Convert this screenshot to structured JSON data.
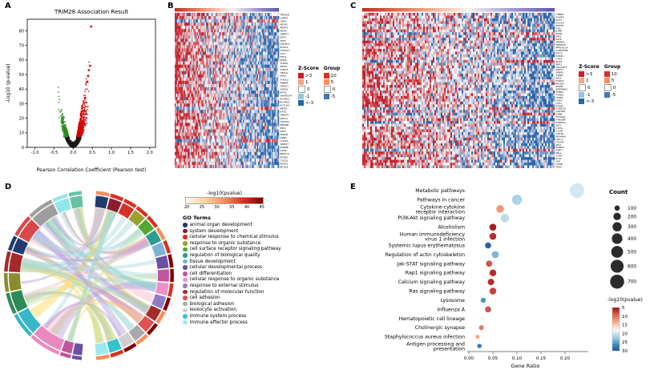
{
  "figure": {
    "panel_labels": {
      "a": "A",
      "b": "B",
      "c": "C",
      "d": "D",
      "e": "E"
    }
  },
  "chart_data": [
    {
      "id": "volcano",
      "type": "scatter",
      "title": "TRIM28 Association Result",
      "xlabel": "Pearson Correlation Coefficient (Pearson test)",
      "ylabel": "-Log10 (p-value)",
      "xlim": [
        -1.2,
        2.15
      ],
      "xticks": [
        -1.0,
        -0.5,
        0.0,
        0.5,
        1.0,
        1.5,
        2.0
      ],
      "ylim": [
        0,
        88
      ],
      "yticks": [
        0,
        10,
        20,
        30,
        40,
        50,
        60,
        70,
        80
      ],
      "colors": {
        "positive": "#d40000",
        "negative": "#2e8b22",
        "ns": "#1a1a1a"
      },
      "top_points": [
        {
          "x": 0.47,
          "y": 83
        },
        {
          "x": 0.44,
          "y": 56
        },
        {
          "x": 0.41,
          "y": 53
        },
        {
          "x": 0.39,
          "y": 49
        },
        {
          "x": 0.37,
          "y": 45
        }
      ]
    },
    {
      "id": "heatmap_b",
      "type": "heatmap",
      "rows": 48,
      "cols": 90,
      "seed": 11,
      "ann_stops": [
        [
          0,
          "#c42a20"
        ],
        [
          0.32,
          "#f0a080"
        ],
        [
          0.55,
          "#f5f2f0"
        ],
        [
          0.8,
          "#9a93cf"
        ],
        [
          1,
          "#5b55ae"
        ]
      ],
      "genes": [
        "TRIM28",
        "UHRF1",
        "CBX3",
        "MCM2",
        "PRMT1",
        "NASP",
        "DNMT1",
        "E2F4",
        "TAF5",
        "GTF3C5",
        "POLA1",
        "CHAF1A",
        "LIG1",
        "RFC4",
        "PCNA",
        "TOP2A",
        "EZH2",
        "SUZ12",
        "HELLS",
        "TTF2",
        "THOC2",
        "RBBP4",
        "HDAC1",
        "SAP30",
        "MTA2",
        "SMARCA4",
        "RUVBL1",
        "RUVBL2",
        "ACTL6A",
        "BRD8",
        "KAT5",
        "DMAP1",
        "VPS72",
        "YEATS4",
        "MRGBP",
        "EPC1",
        "ING3",
        "TRRAP",
        "DDB1",
        "CUL4A",
        "WDR77",
        "SNRPB",
        "LSM2",
        "PRPF19",
        "SF3B3",
        "CDC5L",
        "PLRG1",
        "BCAS2"
      ],
      "zscore_legend": {
        "title": "Z-Score",
        "items": [
          {
            "label": ">3",
            "color": "#ca2027"
          },
          {
            "label": "1",
            "color": "#f4a582"
          },
          {
            "label": "0",
            "color": "#ffffff"
          },
          {
            "label": "-1",
            "color": "#92c5de"
          },
          {
            "label": "<-3",
            "color": "#2166ac"
          }
        ]
      },
      "group_legend": {
        "title": "Group",
        "items": [
          {
            "label": "10",
            "color": "#d73027"
          },
          {
            "label": "5",
            "color": "#fc8d59"
          },
          {
            "label": "0",
            "color": "#ffffff"
          },
          {
            "label": "-5",
            "color": "#4575b4"
          }
        ]
      }
    },
    {
      "id": "heatmap_c",
      "type": "heatmap",
      "rows": 56,
      "cols": 120,
      "seed": 29,
      "ann_stops": [
        [
          0,
          "#c42a20"
        ],
        [
          0.32,
          "#f0a080"
        ],
        [
          0.55,
          "#f5f2f0"
        ],
        [
          0.8,
          "#9a93cf"
        ],
        [
          1,
          "#5b55ae"
        ]
      ],
      "genes": [
        "CPEB4",
        "DUSP5",
        "KLF4",
        "SOCS3",
        "ZFP36",
        "FOS",
        "JUNB",
        "EGR1",
        "IER2",
        "KLF6",
        "NFKBIA",
        "TNFAIP3",
        "PPP1R15A",
        "GADD45B",
        "BTG2",
        "CYR61",
        "CTGF",
        "SGK1",
        "PER1",
        "TSC22D3",
        "DDIT4",
        "FKBP5",
        "TXNIP",
        "IRS2",
        "FOXO3",
        "PIK3R1",
        "RHOB",
        "SERPINE1",
        "THBS1",
        "TGFB1",
        "ITGB2",
        "CD53",
        "LCP1",
        "PTPRC",
        "CORO1A",
        "LAPTM5",
        "CYBB",
        "FCGR2A",
        "TYROBP",
        "FCER1G",
        "AIF1",
        "C1QA",
        "C1QB",
        "CSF1R",
        "MS4A6A",
        "CD14",
        "ITGAM",
        "SPI1",
        "RUNX3",
        "IKZF1",
        "SELL",
        "CCR7",
        "IL7R",
        "LTB",
        "CD3E",
        "TRAC"
      ],
      "zscore_legend": {
        "title": "Z-Score",
        "items": [
          {
            "label": ">3",
            "color": "#ca2027"
          },
          {
            "label": "1",
            "color": "#f4a582"
          },
          {
            "label": "0",
            "color": "#ffffff"
          },
          {
            "label": "-1",
            "color": "#92c5de"
          },
          {
            "label": "<-3",
            "color": "#2166ac"
          }
        ]
      },
      "group_legend": {
        "title": "Group",
        "items": [
          {
            "label": "10",
            "color": "#d73027"
          },
          {
            "label": "5",
            "color": "#fc8d59"
          },
          {
            "label": "0",
            "color": "#ffffff"
          },
          {
            "label": "-5",
            "color": "#4575b4"
          }
        ]
      }
    },
    {
      "id": "chord",
      "type": "chord",
      "colorbar": {
        "title": "-log10(pvalue)",
        "ticks": [
          20,
          25,
          30,
          35,
          40,
          45
        ],
        "colors": [
          "#fff7ec",
          "#fdd49e",
          "#fc8d59",
          "#d7301f",
          "#7f0000"
        ]
      },
      "legend_title": "GO Terms",
      "go_terms": [
        {
          "label": "animal organ development",
          "color": "#1f3b70"
        },
        {
          "label": "system development",
          "color": "#8b1d2c"
        },
        {
          "label": "cellular response to chemical stimulus",
          "color": "#d73027"
        },
        {
          "label": "response to organic substance",
          "color": "#9aa12f"
        },
        {
          "label": "cell surface receptor signaling pathway",
          "color": "#55a630"
        },
        {
          "label": "regulation of biological quality",
          "color": "#2a9d8f"
        },
        {
          "label": "tissue development",
          "color": "#7fb3d5"
        },
        {
          "label": "cellular developmental process",
          "color": "#6a51a3"
        },
        {
          "label": "cell differentiation",
          "color": "#c2559e"
        },
        {
          "label": "cellular response to organic substance",
          "color": "#ef8fc7"
        },
        {
          "label": "response to external stimulus",
          "color": "#8e7cc3"
        },
        {
          "label": "regulation of molecular function",
          "color": "#a52a2a"
        },
        {
          "label": "cell adhesion",
          "color": "#e05252"
        },
        {
          "label": "biological adhesion",
          "color": "#a9a9a9"
        },
        {
          "label": "leukocyte activation",
          "color": "#cfcfcf"
        },
        {
          "label": "immune system process",
          "color": "#35c4cf"
        },
        {
          "label": "immune effector process",
          "color": "#9fe8ec"
        }
      ],
      "left_colors": [
        "#6a51a3",
        "#c2559e",
        "#e889c0",
        "#39b6c9",
        "#2e8b57",
        "#8a8b2a",
        "#a52a2a",
        "#1f3b70",
        "#d94848",
        "#9e9e9e",
        "#8fe8e8",
        "#66c2a5"
      ],
      "ribbon_colors": [
        "#a8dadc",
        "#a8dadc",
        "#a8dadc",
        "#f4b6c2",
        "#b39ddb",
        "#80cbc4",
        "#e57373",
        "#c5e1a5",
        "#a8dadc",
        "#ffd54f"
      ]
    },
    {
      "id": "dotplot",
      "type": "scatter",
      "xlabel": "Gene Ratio",
      "xlim": [
        0,
        0.235
      ],
      "xticks": [
        0.0,
        0.05,
        0.1,
        0.15,
        0.2
      ],
      "count_legend": {
        "title": "Count",
        "values": [
          100,
          200,
          300,
          400,
          500,
          600,
          700
        ]
      },
      "color_legend": {
        "title": "-log10(pvalue)",
        "ticks": [
          5,
          10,
          15,
          20,
          25,
          30
        ]
      },
      "color_stops": [
        [
          5,
          "#a50f15"
        ],
        [
          9,
          "#d6604d"
        ],
        [
          13,
          "#f4a582"
        ],
        [
          16,
          "#fddbc7"
        ],
        [
          18,
          "#f7f7f7"
        ],
        [
          20,
          "#d1e5f0"
        ],
        [
          23,
          "#92c5de"
        ],
        [
          26,
          "#4393c3"
        ],
        [
          30,
          "#1a5899"
        ]
      ],
      "points": [
        {
          "label": "Metabolic pathways",
          "ratio": 0.225,
          "count": 760,
          "logp": 20
        },
        {
          "label": "Pathways in cancer",
          "ratio": 0.1,
          "count": 360,
          "logp": 22
        },
        {
          "label": "Cytokine-cytokine receptor interaction",
          "ratio": 0.065,
          "count": 210,
          "logp": 12
        },
        {
          "label": "PI3K-Akt signaling pathway",
          "ratio": 0.075,
          "count": 260,
          "logp": 21
        },
        {
          "label": "Alcoholism",
          "ratio": 0.05,
          "count": 170,
          "logp": 5
        },
        {
          "label": "Human immunodeficiency virus 1 infection",
          "ratio": 0.05,
          "count": 170,
          "logp": 6
        },
        {
          "label": "Systemic lupus erythematosus",
          "ratio": 0.04,
          "count": 130,
          "logp": 30
        },
        {
          "label": "Regulation of actin cytoskeleton",
          "ratio": 0.055,
          "count": 180,
          "logp": 24
        },
        {
          "label": "Jak-STAT signaling pathway",
          "ratio": 0.042,
          "count": 140,
          "logp": 8
        },
        {
          "label": "Rap1 signaling pathway",
          "ratio": 0.05,
          "count": 165,
          "logp": 6
        },
        {
          "label": "Calcium signaling pathway",
          "ratio": 0.046,
          "count": 150,
          "logp": 6
        },
        {
          "label": "Ras signaling pathway",
          "ratio": 0.05,
          "count": 165,
          "logp": 7
        },
        {
          "label": "Lysosome",
          "ratio": 0.03,
          "count": 95,
          "logp": 26
        },
        {
          "label": "Influenza A",
          "ratio": 0.04,
          "count": 135,
          "logp": 8
        },
        {
          "label": "Hematopoietic cell lineage",
          "ratio": 0.026,
          "count": 85,
          "logp": 18
        },
        {
          "label": "Cholinergic synapse",
          "ratio": 0.026,
          "count": 85,
          "logp": 10
        },
        {
          "label": "Staphylococcus aureus infection",
          "ratio": 0.018,
          "count": 60,
          "logp": 13
        },
        {
          "label": "Antigen processing and presentation",
          "ratio": 0.022,
          "count": 72,
          "logp": 28
        }
      ]
    }
  ]
}
